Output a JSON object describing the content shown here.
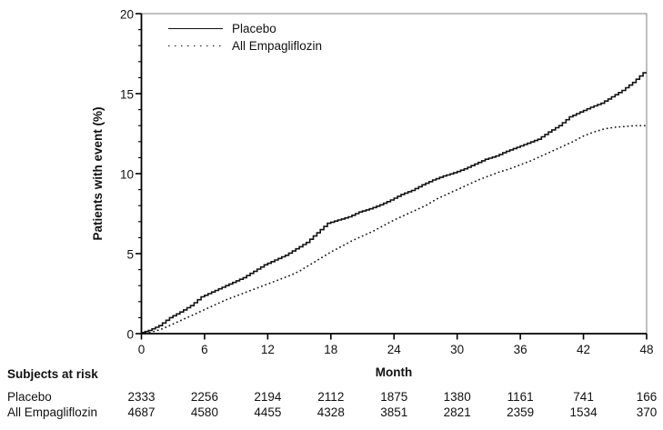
{
  "chart_data": {
    "type": "line",
    "title": "",
    "xlabel": "Month",
    "ylabel": "Patients with event (%)",
    "xlim": [
      0,
      48
    ],
    "ylim": [
      0,
      20
    ],
    "x_ticks": [
      0,
      6,
      12,
      18,
      24,
      30,
      36,
      42,
      48
    ],
    "y_ticks": [
      0,
      5,
      10,
      15,
      20
    ],
    "y_minor_tick_step": 1,
    "grid": "off",
    "legend_position": "top-left",
    "frame_color": "#808080",
    "axis_color": "#000000",
    "series": [
      {
        "name": "Placebo",
        "style": "solid",
        "color": "#111111",
        "x": [
          0,
          1,
          2,
          3,
          4,
          5,
          6,
          7,
          8,
          9,
          10,
          11,
          12,
          13,
          14,
          15,
          16,
          17,
          18,
          19,
          20,
          21,
          22,
          23,
          24,
          25,
          26,
          27,
          28,
          29,
          30,
          31,
          32,
          33,
          34,
          35,
          36,
          37,
          38,
          39,
          40,
          41,
          42,
          43,
          44,
          45,
          46,
          47,
          48
        ],
        "values": [
          0,
          0.2,
          0.5,
          1.0,
          1.35,
          1.75,
          2.3,
          2.6,
          2.9,
          3.2,
          3.5,
          3.9,
          4.3,
          4.6,
          4.9,
          5.3,
          5.7,
          6.3,
          6.9,
          7.1,
          7.3,
          7.6,
          7.8,
          8.05,
          8.35,
          8.7,
          8.95,
          9.3,
          9.6,
          9.85,
          10.05,
          10.3,
          10.6,
          10.9,
          11.1,
          11.4,
          11.65,
          11.9,
          12.15,
          12.6,
          13.0,
          13.55,
          13.85,
          14.15,
          14.4,
          14.8,
          15.2,
          15.7,
          16.3
        ]
      },
      {
        "name": "All Empagliflozin",
        "style": "dotted",
        "color": "#111111",
        "x": [
          0,
          1,
          2,
          3,
          4,
          5,
          6,
          7,
          8,
          9,
          10,
          11,
          12,
          13,
          14,
          15,
          16,
          17,
          18,
          19,
          20,
          21,
          22,
          23,
          24,
          25,
          26,
          27,
          28,
          29,
          30,
          31,
          32,
          33,
          34,
          35,
          36,
          37,
          38,
          39,
          40,
          41,
          42,
          43,
          44,
          45,
          46,
          47,
          48
        ],
        "values": [
          0,
          0.1,
          0.3,
          0.6,
          0.9,
          1.2,
          1.5,
          1.8,
          2.1,
          2.35,
          2.6,
          2.85,
          3.1,
          3.35,
          3.6,
          3.9,
          4.3,
          4.7,
          5.1,
          5.45,
          5.8,
          6.1,
          6.4,
          6.75,
          7.1,
          7.4,
          7.7,
          8.0,
          8.4,
          8.7,
          9.0,
          9.3,
          9.6,
          9.85,
          10.1,
          10.3,
          10.55,
          10.8,
          11.1,
          11.4,
          11.7,
          12.0,
          12.35,
          12.6,
          12.8,
          12.9,
          12.95,
          13.0,
          13.0
        ]
      }
    ]
  },
  "risk_table": {
    "title": "Subjects at risk",
    "months": [
      0,
      6,
      12,
      18,
      24,
      30,
      36,
      42,
      48
    ],
    "rows": [
      {
        "label": "Placebo",
        "values": [
          2333,
          2256,
          2194,
          2112,
          1875,
          1380,
          1161,
          741,
          166
        ]
      },
      {
        "label": "All Empagliflozin",
        "values": [
          4687,
          4580,
          4455,
          4328,
          3851,
          2821,
          2359,
          1534,
          370
        ]
      }
    ]
  }
}
